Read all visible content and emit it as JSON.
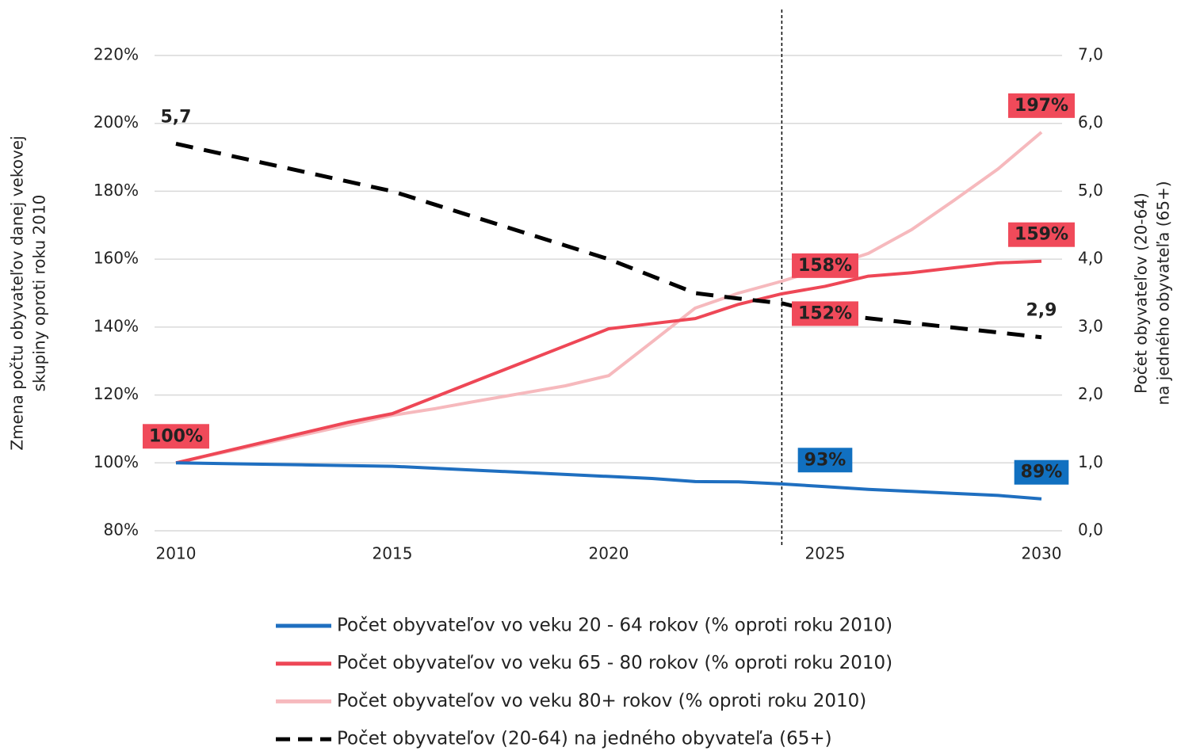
{
  "chart_data": {
    "type": "line",
    "ylabel": [
      "Zmena počtu obyvateľov danej vekovej",
      "skupiny oproti roku 2010"
    ],
    "y2label": [
      "Počet obyvateľov (20-64)",
      "na jedného obyvateľa (65+)"
    ],
    "x": [
      2010,
      2011,
      2012,
      2013,
      2014,
      2015,
      2016,
      2017,
      2018,
      2019,
      2020,
      2021,
      2022,
      2023,
      2024,
      2025,
      2026,
      2027,
      2028,
      2029,
      2030
    ],
    "xlim": [
      2010,
      2030
    ],
    "xticks": [
      2010,
      2015,
      2020,
      2025,
      2030
    ],
    "ylim": [
      80,
      220
    ],
    "yticks": [
      {
        "value": 80,
        "label": "80%"
      },
      {
        "value": 100,
        "label": "100%"
      },
      {
        "value": 120,
        "label": "120%"
      },
      {
        "value": 140,
        "label": "140%"
      },
      {
        "value": 160,
        "label": "160%"
      },
      {
        "value": 180,
        "label": "180%"
      },
      {
        "value": 200,
        "label": "200%"
      },
      {
        "value": 220,
        "label": "220%"
      }
    ],
    "y2lim": [
      0,
      7
    ],
    "y2ticks": [
      {
        "value": 0,
        "label": "0,0"
      },
      {
        "value": 1,
        "label": "1,0"
      },
      {
        "value": 2,
        "label": "2,0"
      },
      {
        "value": 3,
        "label": "3,0"
      },
      {
        "value": 4,
        "label": "4,0"
      },
      {
        "value": 5,
        "label": "5,0"
      },
      {
        "value": 6,
        "label": "6,0"
      },
      {
        "value": 7,
        "label": "7,0"
      }
    ],
    "grid": true,
    "vline": 2024,
    "series": [
      {
        "name": "Počet obyvateľov vo veku 20 - 64 rokov (% oproti roku 2010)",
        "color": "#1f6fc0",
        "label_color": "#1170c0",
        "values": [
          100,
          99.8,
          99.6,
          99.4,
          99.2,
          99.0,
          98.4,
          97.8,
          97.2,
          96.6,
          96.0,
          95.4,
          94.5,
          94.4,
          93.8,
          93.0,
          92.2,
          91.6,
          91.0,
          90.4,
          89.4
        ],
        "value_labels": [
          null,
          null,
          null,
          null,
          null,
          null,
          null,
          null,
          null,
          null,
          null,
          null,
          null,
          null,
          null,
          "93%",
          null,
          null,
          null,
          null,
          "89%"
        ]
      },
      {
        "name": "Počet obyvateľov vo veku 65 - 80 rokov (% oproti roku 2010)",
        "color": "#ee4756",
        "label_color": "#f04a5a",
        "values": [
          100,
          103,
          106,
          109,
          112,
          114.5,
          119.5,
          124.5,
          129.5,
          134.5,
          139.5,
          141,
          142.5,
          146.7,
          149.8,
          152,
          155,
          156,
          157.5,
          158.9,
          159.4
        ],
        "value_labels": [
          "100%",
          null,
          null,
          null,
          null,
          null,
          null,
          null,
          null,
          null,
          null,
          null,
          null,
          null,
          null,
          "152%",
          null,
          null,
          null,
          null,
          "159%"
        ]
      },
      {
        "name": "Počet obyvateľov vo veku 80+ rokov (% oproti roku 2010)",
        "color": "#f6b9bd",
        "label_color": "#f04a5a",
        "values": [
          100,
          102.8,
          105.6,
          108.4,
          111.2,
          114,
          116,
          118.3,
          120.5,
          122.7,
          125.7,
          135.6,
          145.6,
          150,
          153.5,
          157.5,
          161.7,
          168.7,
          177.5,
          186.6,
          197.4
        ],
        "value_labels": [
          null,
          null,
          null,
          null,
          null,
          null,
          null,
          null,
          null,
          null,
          null,
          null,
          null,
          null,
          null,
          "158%",
          null,
          null,
          null,
          null,
          "197%"
        ]
      },
      {
        "name": "Počet obyvateľov (20-64) na jedného obyvateľa (65+)",
        "color": "#000000",
        "axis": "y2",
        "dashed": true,
        "values": [
          5.7,
          5.56,
          5.42,
          5.28,
          5.14,
          5.0,
          4.8,
          4.6,
          4.4,
          4.2,
          4.0,
          3.75,
          3.5,
          3.42,
          3.35,
          3.2,
          3.13,
          3.06,
          2.99,
          2.92,
          2.85
        ],
        "value_labels": [
          "5,7",
          null,
          null,
          null,
          null,
          null,
          null,
          null,
          null,
          null,
          null,
          null,
          null,
          null,
          null,
          null,
          null,
          null,
          null,
          null,
          "2,9"
        ]
      }
    ]
  }
}
